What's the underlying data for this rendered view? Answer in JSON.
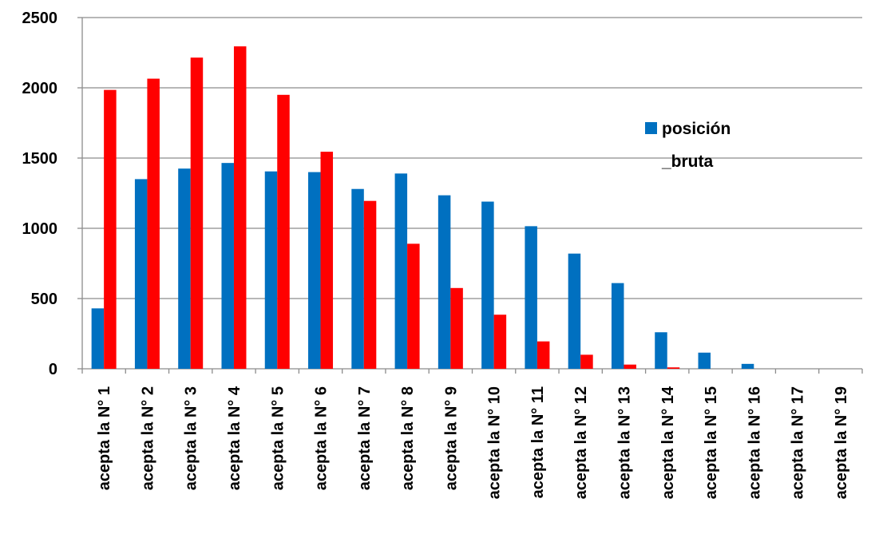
{
  "chart_data": {
    "type": "bar",
    "categories": [
      "acepta la N° 1",
      "acepta la N° 2",
      "acepta la N° 3",
      "acepta la N° 4",
      "acepta la N° 5",
      "acepta la N° 6",
      "acepta la N° 7",
      "acepta la N° 8",
      "acepta la N° 9",
      "acepta la N° 10",
      "acepta la N° 11",
      "acepta la N° 12",
      "acepta la N° 13",
      "acepta la N° 14",
      "acepta la N° 15",
      "acepta la N° 16",
      "acepta la N° 17",
      "acepta la N° 19"
    ],
    "series": [
      {
        "name": "posición _bruta",
        "legend_lines": [
          "posición",
          "_bruta"
        ],
        "color": "#0070C0",
        "values": [
          430,
          1350,
          1425,
          1465,
          1405,
          1400,
          1280,
          1390,
          1235,
          1190,
          1015,
          820,
          610,
          260,
          115,
          35,
          0,
          0
        ]
      },
      {
        "color": "#FF0000",
        "values": [
          1985,
          2065,
          2215,
          2295,
          1950,
          1545,
          1195,
          890,
          575,
          385,
          195,
          100,
          30,
          10,
          0,
          0,
          0,
          0
        ]
      }
    ],
    "yticks": [
      0,
      500,
      1000,
      1500,
      2000,
      2500
    ],
    "ylim": [
      0,
      2500
    ],
    "grid": true,
    "legend_position": "right",
    "title": "",
    "xlabel": "",
    "ylabel": ""
  }
}
